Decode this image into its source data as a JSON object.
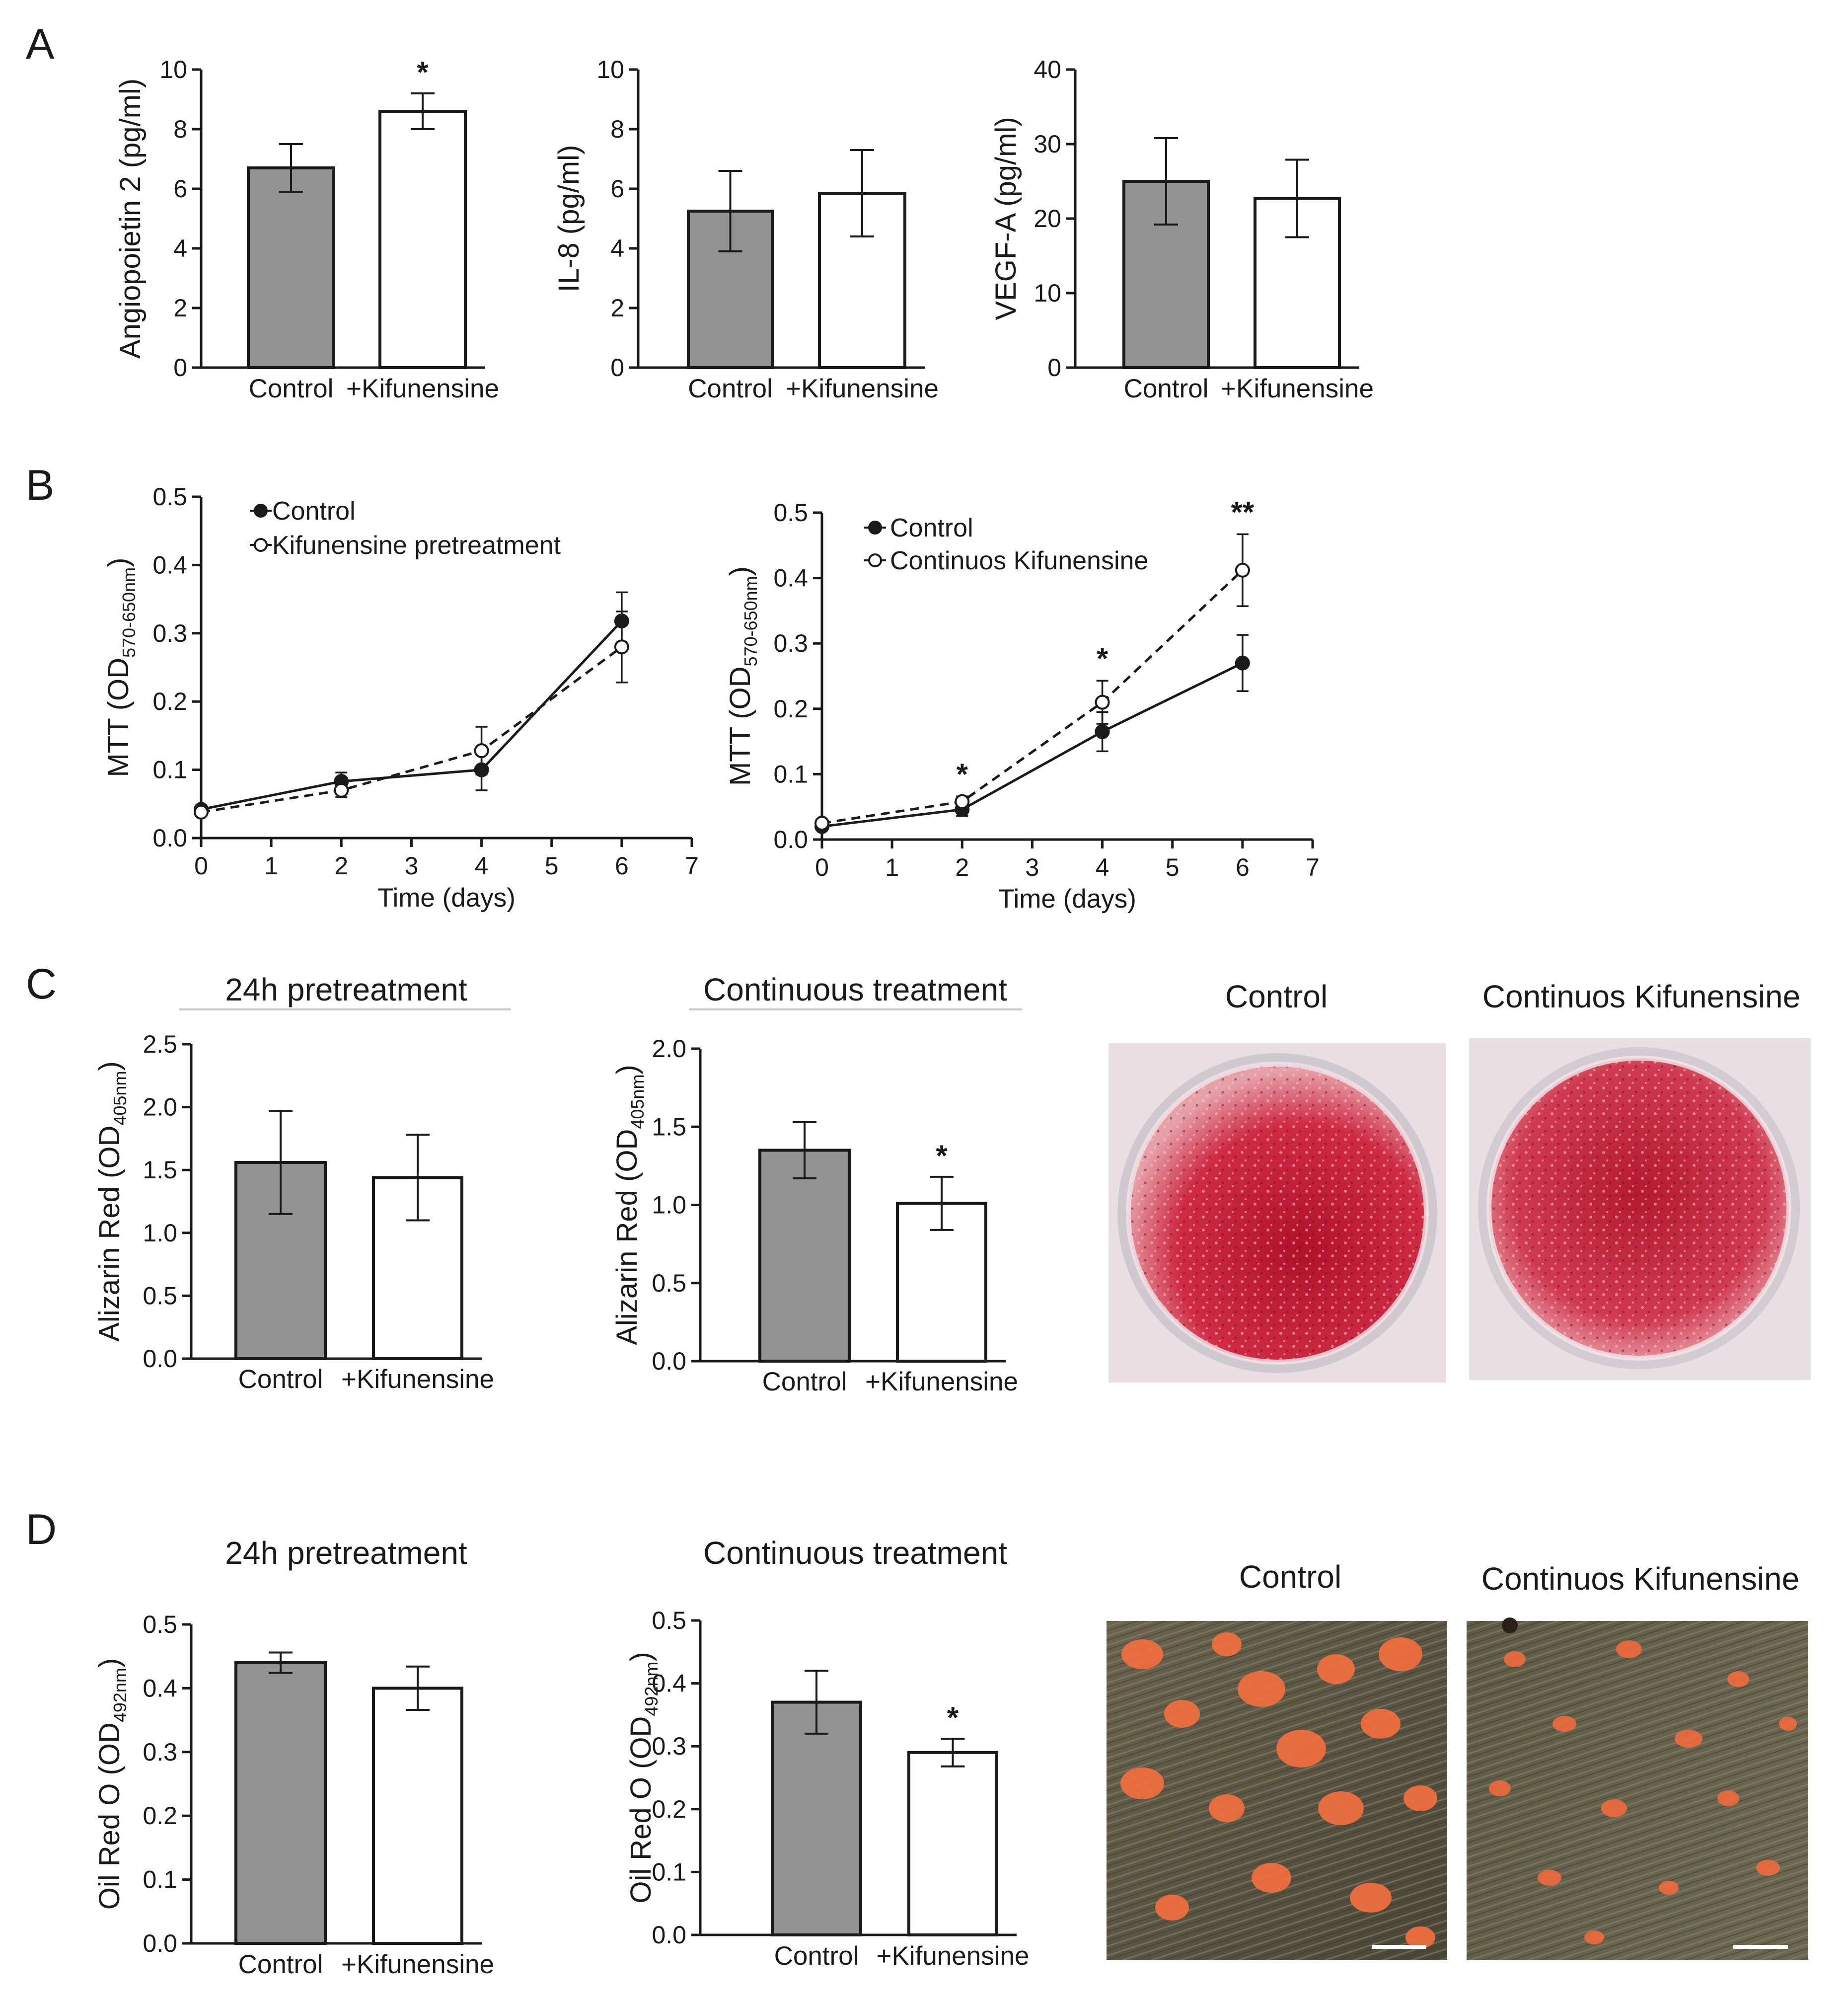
{
  "panels": {
    "A": {
      "letter": "A"
    },
    "B": {
      "letter": "B"
    },
    "C": {
      "letter": "C",
      "title_left": "24h pretreatment",
      "title_mid": "Continuous treatment",
      "photo_label_control": "Control",
      "photo_label_kif": "Continuos Kifunensine"
    },
    "D": {
      "letter": "D",
      "title_left": "24h pretreatment",
      "title_mid": "Continuous treatment",
      "photo_label_control": "Control",
      "photo_label_kif": "Continuos Kifunensine"
    }
  },
  "colors": {
    "control_bar": "#939393",
    "kif_bar": "#ffffff",
    "outline": "#1a1a1a",
    "alizarin": "#c8243c",
    "oil_red": "#f06a3c",
    "micro_bg": "#5a5646"
  },
  "chart_data": [
    {
      "id": "a1",
      "type": "bar",
      "categories": [
        "Control",
        "+Kifunensine"
      ],
      "values": [
        6.7,
        8.6
      ],
      "errors": [
        0.8,
        0.6
      ],
      "significance": [
        "",
        "*"
      ],
      "ylabel_main": "Angiopoietin 2 (pg/ml)",
      "ylabel_sub": "",
      "ylim": [
        0,
        10
      ],
      "yticks": [
        0,
        2,
        4,
        6,
        8,
        10
      ],
      "ytick_labels": [
        "0",
        "2",
        "4",
        "6",
        "8",
        "10"
      ]
    },
    {
      "id": "a2",
      "type": "bar",
      "categories": [
        "Control",
        "+Kifunensine"
      ],
      "values": [
        5.25,
        5.85
      ],
      "errors": [
        1.35,
        1.45
      ],
      "significance": [
        "",
        ""
      ],
      "ylabel_main": "IL-8 (pg/ml)",
      "ylabel_sub": "",
      "ylim": [
        0,
        10
      ],
      "yticks": [
        0,
        2,
        4,
        6,
        8,
        10
      ],
      "ytick_labels": [
        "0",
        "2",
        "4",
        "6",
        "8",
        "10"
      ]
    },
    {
      "id": "a3",
      "type": "bar",
      "categories": [
        "Control",
        "+Kifunensine"
      ],
      "values": [
        25,
        22.7
      ],
      "errors": [
        5.8,
        5.2
      ],
      "significance": [
        "",
        ""
      ],
      "ylabel_main": "VEGF-A (pg/ml)",
      "ylabel_sub": "",
      "ylim": [
        0,
        40
      ],
      "yticks": [
        0,
        10,
        20,
        30,
        40
      ],
      "ytick_labels": [
        "0",
        "10",
        "20",
        "30",
        "40"
      ]
    },
    {
      "id": "b1",
      "type": "line",
      "x": [
        0,
        2,
        4,
        6
      ],
      "xlabel": "Time (days)",
      "xlim": [
        0,
        7
      ],
      "xticks": [
        0,
        1,
        2,
        3,
        4,
        5,
        6,
        7
      ],
      "xtick_labels": [
        "0",
        "1",
        "2",
        "3",
        "4",
        "5",
        "6",
        "7"
      ],
      "ylim": [
        0,
        0.5
      ],
      "yticks": [
        0,
        0.1,
        0.2,
        0.3,
        0.4,
        0.5
      ],
      "ytick_labels": [
        "0.0",
        "0.1",
        "0.2",
        "0.3",
        "0.4",
        "0.5"
      ],
      "ylabel_main": "MTT (OD",
      "ylabel_sub": "570-650nm",
      "ylabel_end": ")",
      "series": [
        {
          "name": "Control",
          "legend_text": "Control",
          "marker": "filled",
          "dashed": false,
          "values": [
            0.042,
            0.083,
            0.1,
            0.318
          ],
          "errors": [
            0.005,
            0.013,
            0.03,
            0.042
          ]
        },
        {
          "name": "Kifunensine pretreatment",
          "legend_text": "Kifunensine pretreatment",
          "marker": "open",
          "dashed": true,
          "values": [
            0.038,
            0.07,
            0.128,
            0.28
          ],
          "errors": [
            0.004,
            0.01,
            0.035,
            0.052
          ]
        }
      ],
      "significance": [
        "",
        "",
        "",
        ""
      ]
    },
    {
      "id": "b2",
      "type": "line",
      "x": [
        0,
        2,
        4,
        6
      ],
      "xlabel": "Time (days)",
      "xlim": [
        0,
        7
      ],
      "xticks": [
        0,
        1,
        2,
        3,
        4,
        5,
        6,
        7
      ],
      "xtick_labels": [
        "0",
        "1",
        "2",
        "3",
        "4",
        "5",
        "6",
        "7"
      ],
      "ylim": [
        0,
        0.5
      ],
      "yticks": [
        0,
        0.1,
        0.2,
        0.3,
        0.4,
        0.5
      ],
      "ytick_labels": [
        "0.0",
        "0.1",
        "0.2",
        "0.3",
        "0.4",
        "0.5"
      ],
      "ylabel_main": "MTT (OD",
      "ylabel_sub": "570-650nm",
      "ylabel_end": ")",
      "series": [
        {
          "name": "Control",
          "legend_text": " Control",
          "marker": "filled",
          "dashed": false,
          "values": [
            0.02,
            0.046,
            0.165,
            0.27
          ],
          "errors": [
            0.004,
            0.01,
            0.03,
            0.043
          ]
        },
        {
          "name": "Continuos Kifunensine",
          "legend_text": " Continuos Kifunensine",
          "marker": "open",
          "dashed": true,
          "values": [
            0.025,
            0.058,
            0.21,
            0.412
          ],
          "errors": [
            0.004,
            0.008,
            0.033,
            0.055
          ]
        }
      ],
      "significance": [
        "",
        "*",
        "*",
        "**"
      ]
    },
    {
      "id": "c1",
      "type": "bar",
      "categories": [
        "Control",
        "+Kifunensine"
      ],
      "values": [
        1.56,
        1.44
      ],
      "errors": [
        0.41,
        0.34
      ],
      "significance": [
        "",
        ""
      ],
      "ylabel_main": "Alizarin Red (OD",
      "ylabel_sub": "405nm",
      "ylabel_end": ")",
      "ylim": [
        0,
        2.5
      ],
      "yticks": [
        0,
        0.5,
        1.0,
        1.5,
        2.0,
        2.5
      ],
      "ytick_labels": [
        "0.0",
        "0.5",
        "1.0",
        "1.5",
        "2.0",
        "2.5"
      ]
    },
    {
      "id": "c2",
      "type": "bar",
      "categories": [
        "Control",
        "+Kifunensine"
      ],
      "values": [
        1.35,
        1.01
      ],
      "errors": [
        0.18,
        0.17
      ],
      "significance": [
        "",
        "*"
      ],
      "ylabel_main": "Alizarin Red (OD",
      "ylabel_sub": "405nm",
      "ylabel_end": ")",
      "ylim": [
        0,
        2.0
      ],
      "yticks": [
        0,
        0.5,
        1.0,
        1.5,
        2.0
      ],
      "ytick_labels": [
        "0.0",
        "0.5",
        "1.0",
        "1.5",
        "2.0"
      ]
    },
    {
      "id": "d1",
      "type": "bar",
      "categories": [
        "Control",
        "+Kifunensine"
      ],
      "values": [
        0.44,
        0.4
      ],
      "errors": [
        0.016,
        0.034
      ],
      "significance": [
        "",
        ""
      ],
      "ylabel_main": "Oil Red O (OD",
      "ylabel_sub": "492nm",
      "ylabel_end": ")",
      "ylim": [
        0,
        0.5
      ],
      "yticks": [
        0,
        0.1,
        0.2,
        0.3,
        0.4,
        0.5
      ],
      "ytick_labels": [
        "0.0",
        "0.1",
        "0.2",
        "0.3",
        "0.4",
        "0.5"
      ]
    },
    {
      "id": "d2",
      "type": "bar",
      "categories": [
        "Control",
        "+Kifunensine"
      ],
      "values": [
        0.37,
        0.29
      ],
      "errors": [
        0.05,
        0.022
      ],
      "significance": [
        "",
        "*"
      ],
      "ylabel_main": "Oil Red O (OD",
      "ylabel_sub": "492nm",
      "ylabel_end": ")",
      "ylim": [
        0,
        0.5
      ],
      "yticks": [
        0,
        0.1,
        0.2,
        0.3,
        0.4,
        0.5
      ],
      "ytick_labels": [
        "0.0",
        "0.1",
        "0.2",
        "0.3",
        "0.4",
        "0.5"
      ]
    }
  ]
}
